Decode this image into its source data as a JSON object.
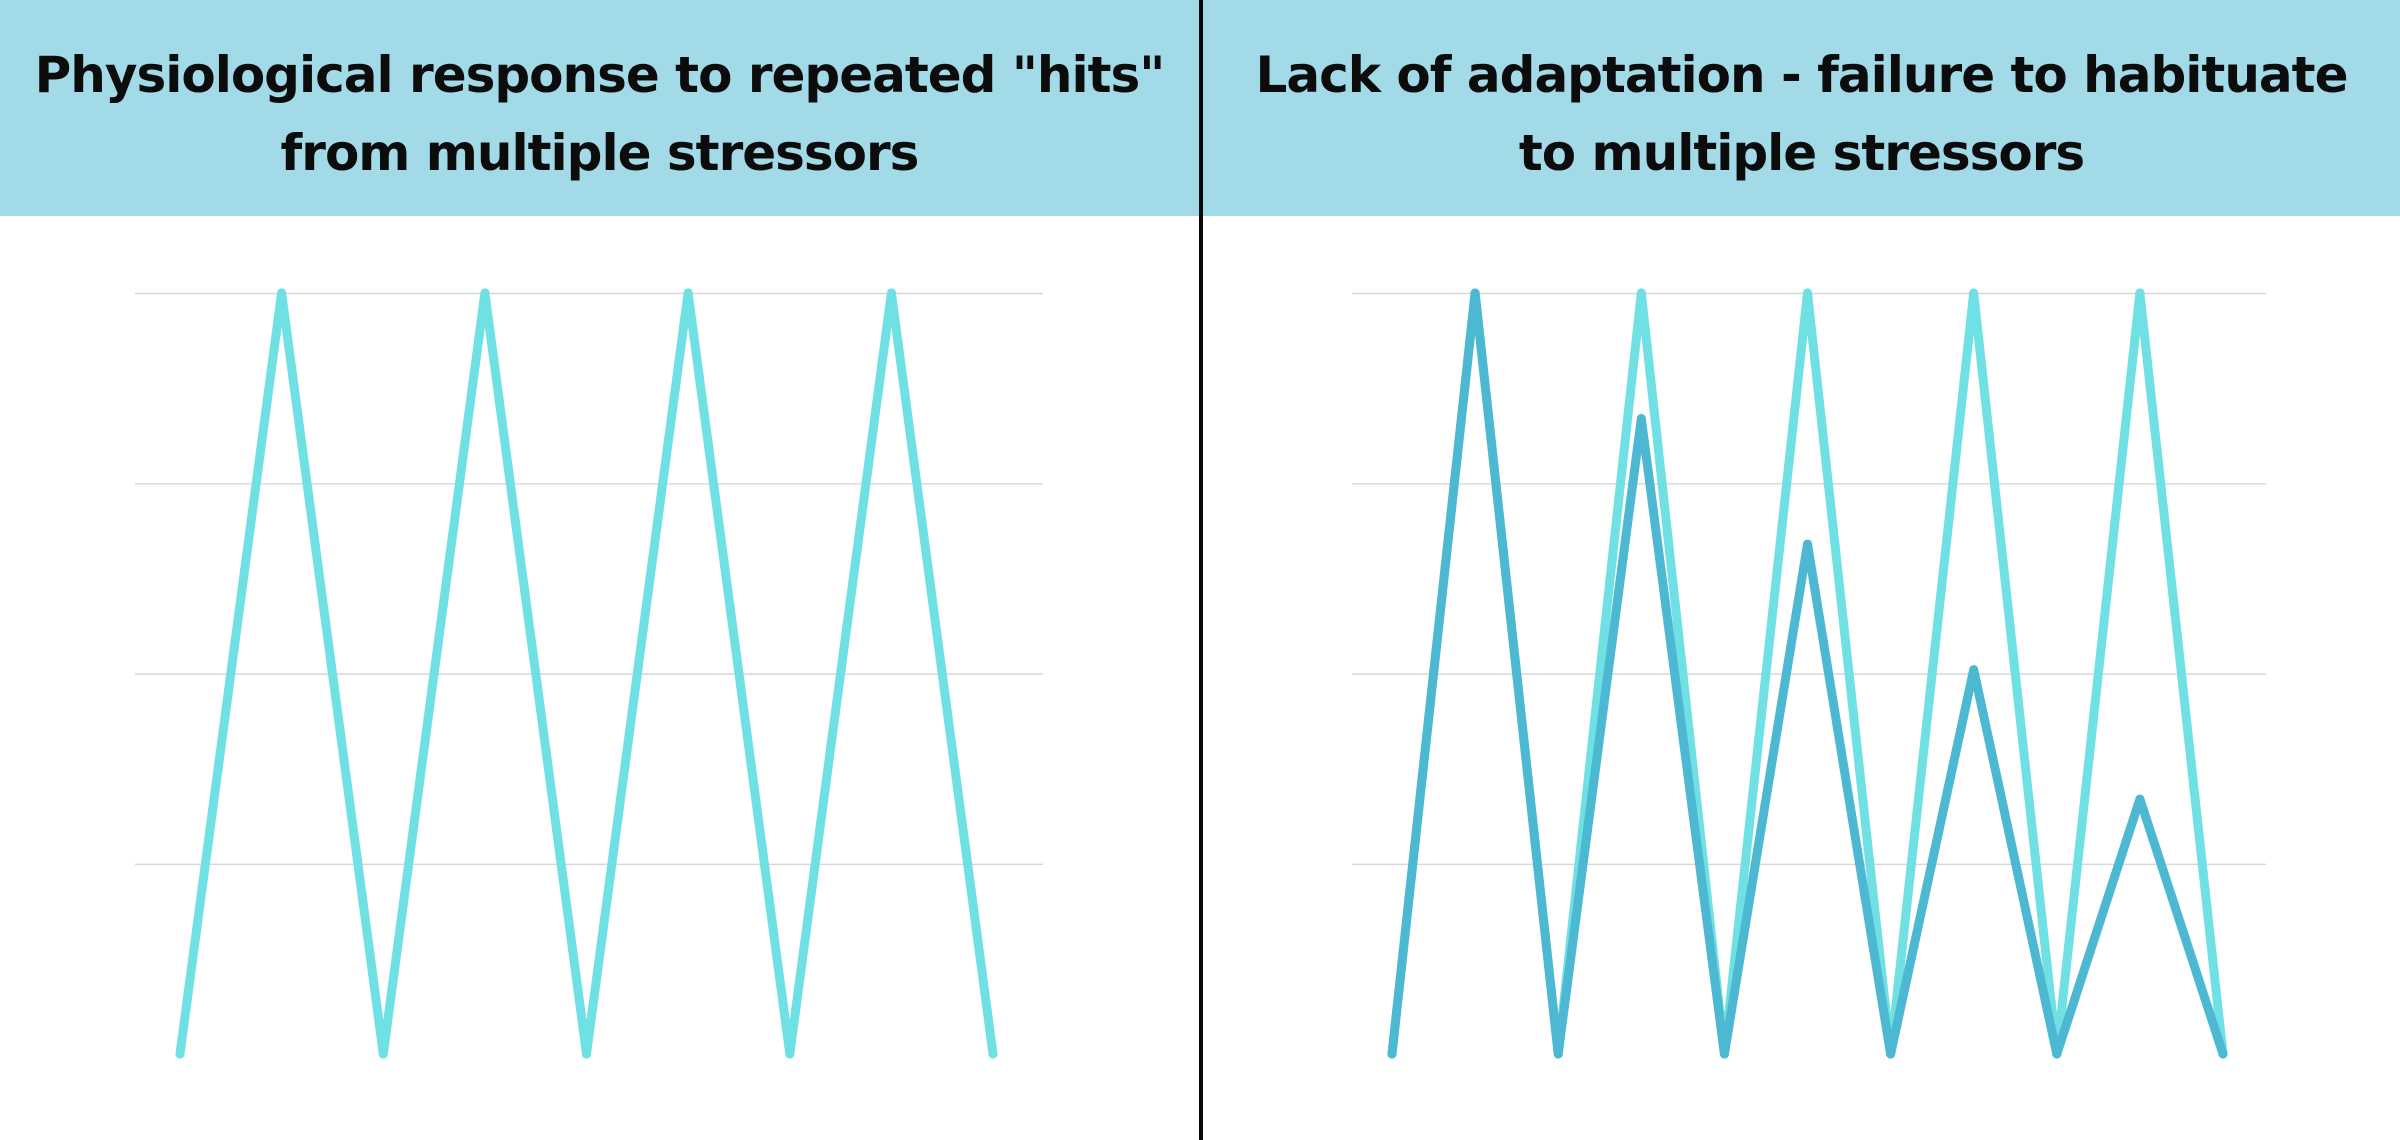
{
  "colors": {
    "header_bg": "#a3dae8",
    "gridline": "#d4d7d9",
    "series_light": "#6fe0e3",
    "series_dark": "#4db8d2",
    "divider": "#0a0a0a"
  },
  "chart_data": [
    {
      "type": "line",
      "title": "Physiological response to repeated \"hits\"\nfrom multiple stressors",
      "xlabel": "",
      "ylabel": "",
      "grid": true,
      "ylim": [
        0,
        100
      ],
      "yticks": [
        25,
        50,
        75,
        100
      ],
      "x": [
        0,
        1,
        2,
        3,
        4,
        5,
        6,
        7,
        8
      ],
      "series": [
        {
          "color": "#6fe0e3",
          "values": [
            0,
            100,
            0,
            100,
            0,
            100,
            0,
            100,
            0
          ]
        }
      ]
    },
    {
      "type": "line",
      "title": "Lack of adaptation - failure to habituate\nto multiple stressors",
      "xlabel": "",
      "ylabel": "",
      "grid": true,
      "ylim": [
        0,
        100
      ],
      "yticks": [
        25,
        50,
        75,
        100
      ],
      "x": [
        0,
        1,
        2,
        3,
        4,
        5,
        6,
        7,
        8,
        9,
        10
      ],
      "series": [
        {
          "color": "#6fe0e3",
          "values": [
            0,
            100,
            0,
            100,
            0,
            100,
            0,
            100,
            0,
            100,
            0
          ]
        },
        {
          "color": "#4db8d2",
          "values": [
            0,
            100,
            0,
            83.5,
            0,
            67,
            0,
            50.5,
            0,
            33.5,
            0
          ]
        }
      ]
    }
  ]
}
